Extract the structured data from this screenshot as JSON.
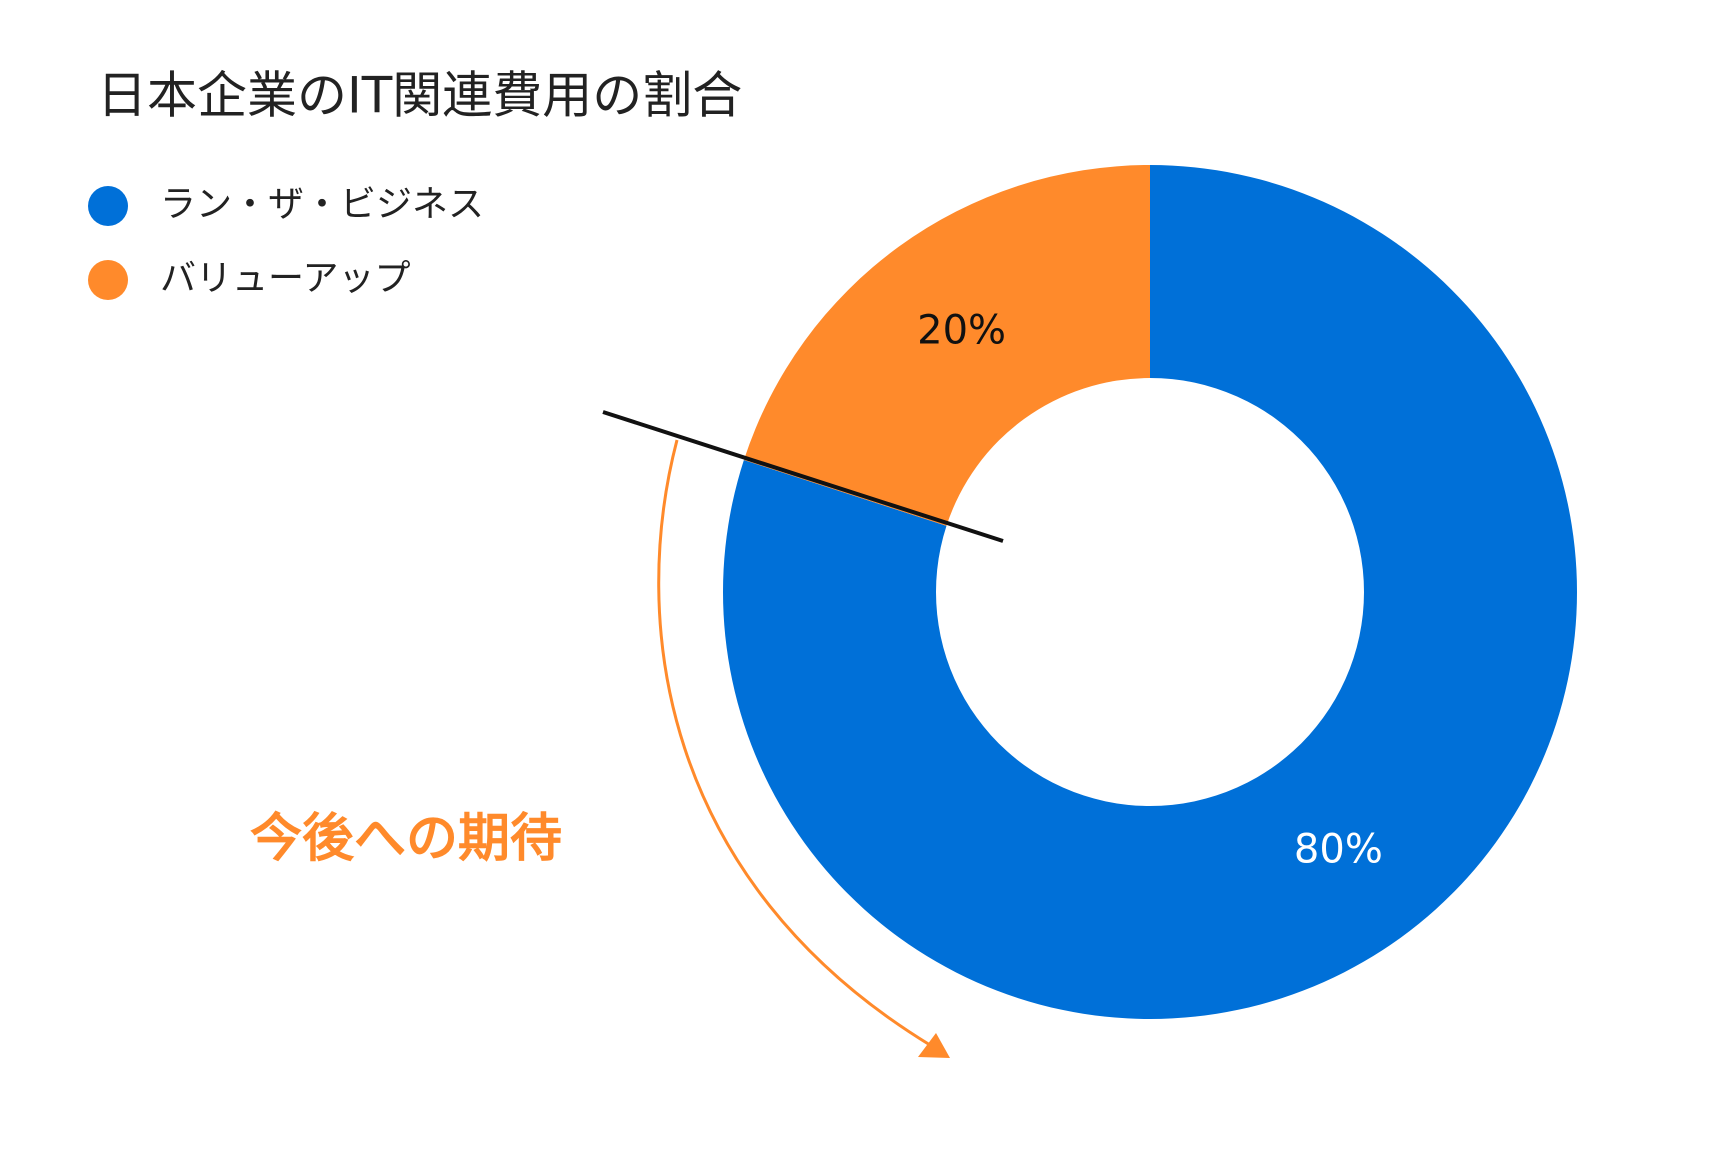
{
  "chart_data": {
    "type": "donut",
    "title": "日本企業のIT関連費用の割合",
    "categories": [
      "ラン・ザ・ビジネス",
      "バリューアップ"
    ],
    "values": [
      80,
      20
    ],
    "value_labels": [
      "80%",
      "20%"
    ],
    "colors": [
      "#0070d8",
      "#ff8a2b"
    ],
    "annotation": "今後への期待"
  }
}
